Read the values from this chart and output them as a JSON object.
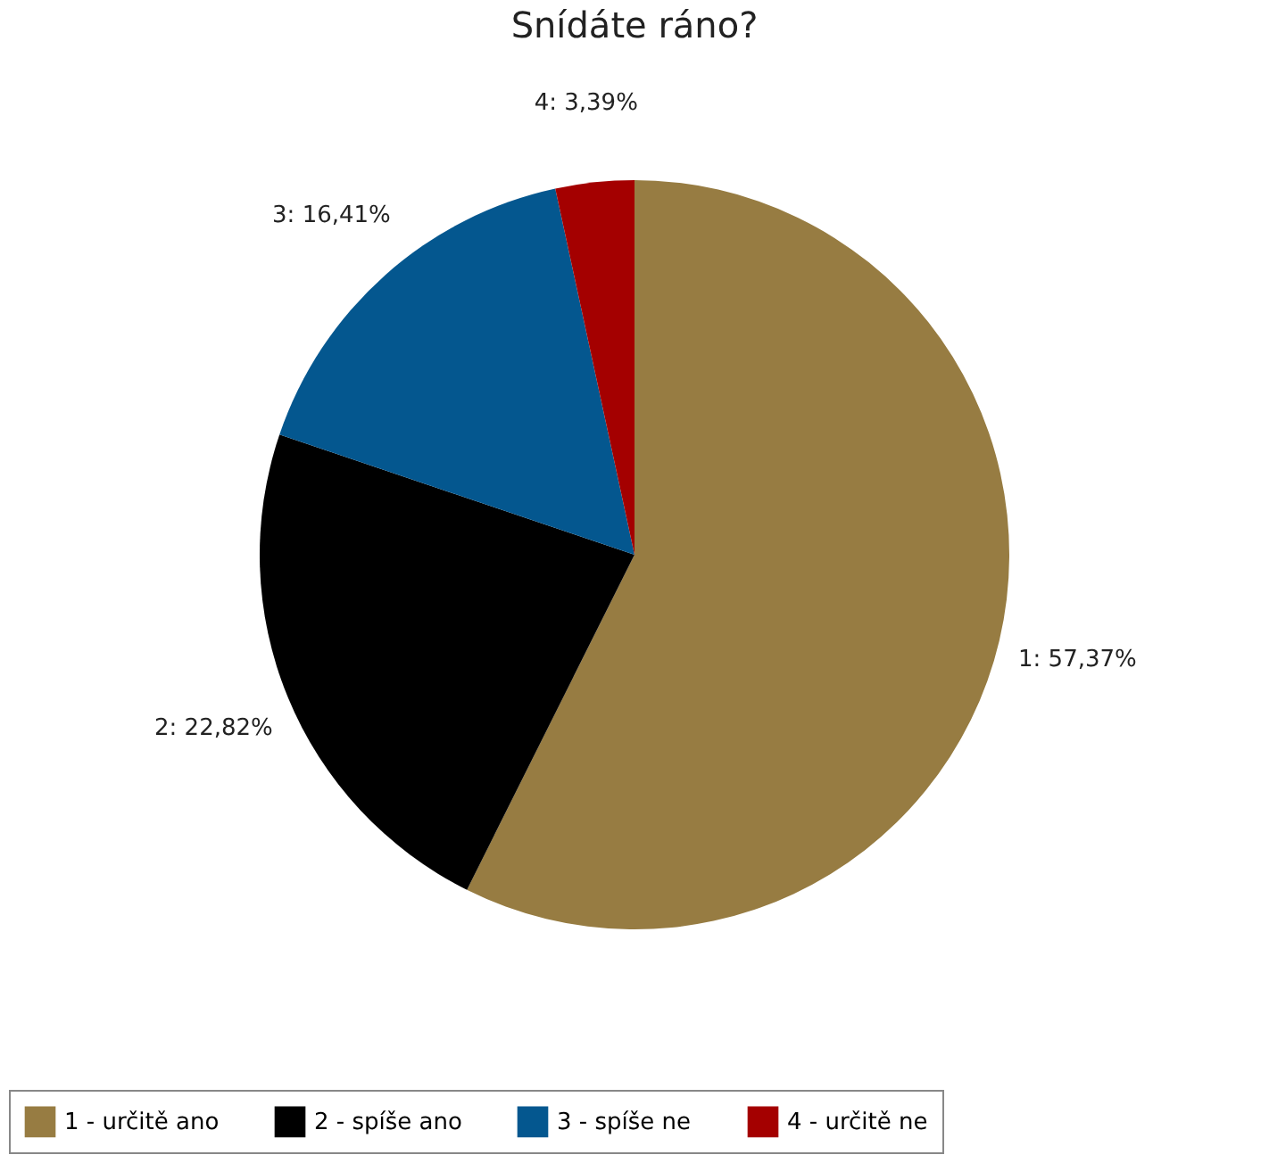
{
  "chart_data": {
    "type": "pie",
    "title": "Snídáte ráno?",
    "categories": [
      "1 - určitě ano",
      "2 - spíše ano",
      "3 - spíše ne",
      "4 - určitě ne"
    ],
    "values": [
      57.37,
      22.82,
      16.41,
      3.39
    ],
    "colors": [
      "#977c42",
      "#000000",
      "#04578f",
      "#a40000"
    ],
    "value_labels": [
      "1: 57,37%",
      "2: 22,82%",
      "3: 16,41%",
      "4: 3,39%"
    ],
    "legend": "bottom"
  }
}
